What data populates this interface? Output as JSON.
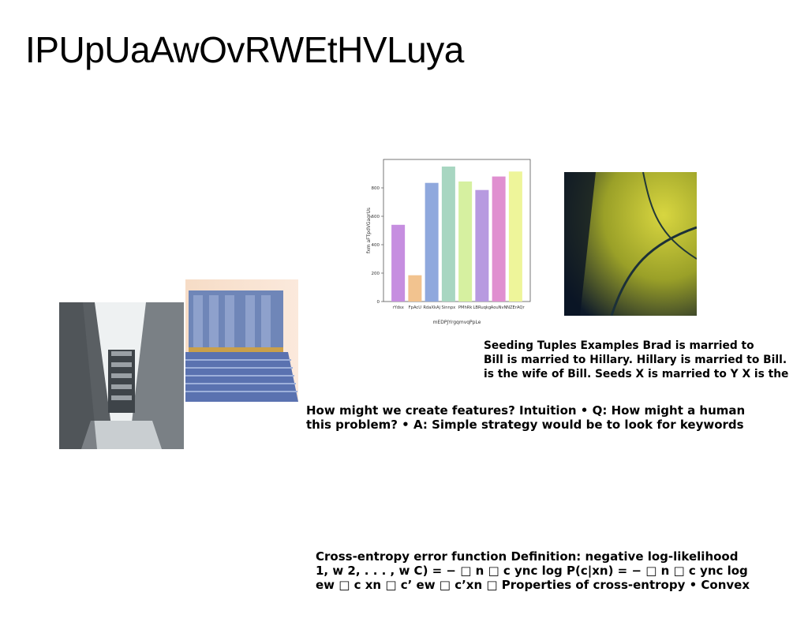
{
  "title": "IPUpUaAwOvRWEtHVLuya",
  "blocks": {
    "seed": [
      "Seeding Tuples Examples Brad is married to",
      "Bill is married to Hillary. Hillary is married to Bill.",
      "is the wife of Bill. Seeds X is married to Y X is the"
    ],
    "features": [
      "How might we create features? Intuition • Q: How might a human",
      "this problem? • A: Simple strategy would be to look for keywords"
    ],
    "xent": [
      "Cross-entropy error function Definition: negative log-likelihood",
      "1, w 2, . . . , w C) = − □ n □ c ync log P(c|xn) = − □ n □ c ync log",
      "ew □ c xn □ c’ ew □ c’xn □ Properties of cross-entropy • Convex"
    ]
  },
  "chart_data": {
    "type": "bar",
    "categories": [
      "rYdsx",
      "FpAcU",
      "RdaXkAj",
      "Sinnpx",
      "PMhRk",
      "LBRuqkg",
      "AouNvN",
      "NZErAQr"
    ],
    "values": [
      540,
      185,
      835,
      950,
      845,
      785,
      880,
      915
    ],
    "colors": [
      "#c68ee0",
      "#f2c38f",
      "#8fa8dd",
      "#a8d6c1",
      "#d6f0a0",
      "#b79ae0",
      "#e08fd0",
      "#eef59a"
    ],
    "xlabel": "mEDPJYrgqmvqPpLe",
    "ylabel": "fxm aFTpdVGagrUs",
    "ylim": [
      0,
      1000
    ],
    "yticks": [
      0,
      200,
      400,
      600,
      800
    ]
  }
}
